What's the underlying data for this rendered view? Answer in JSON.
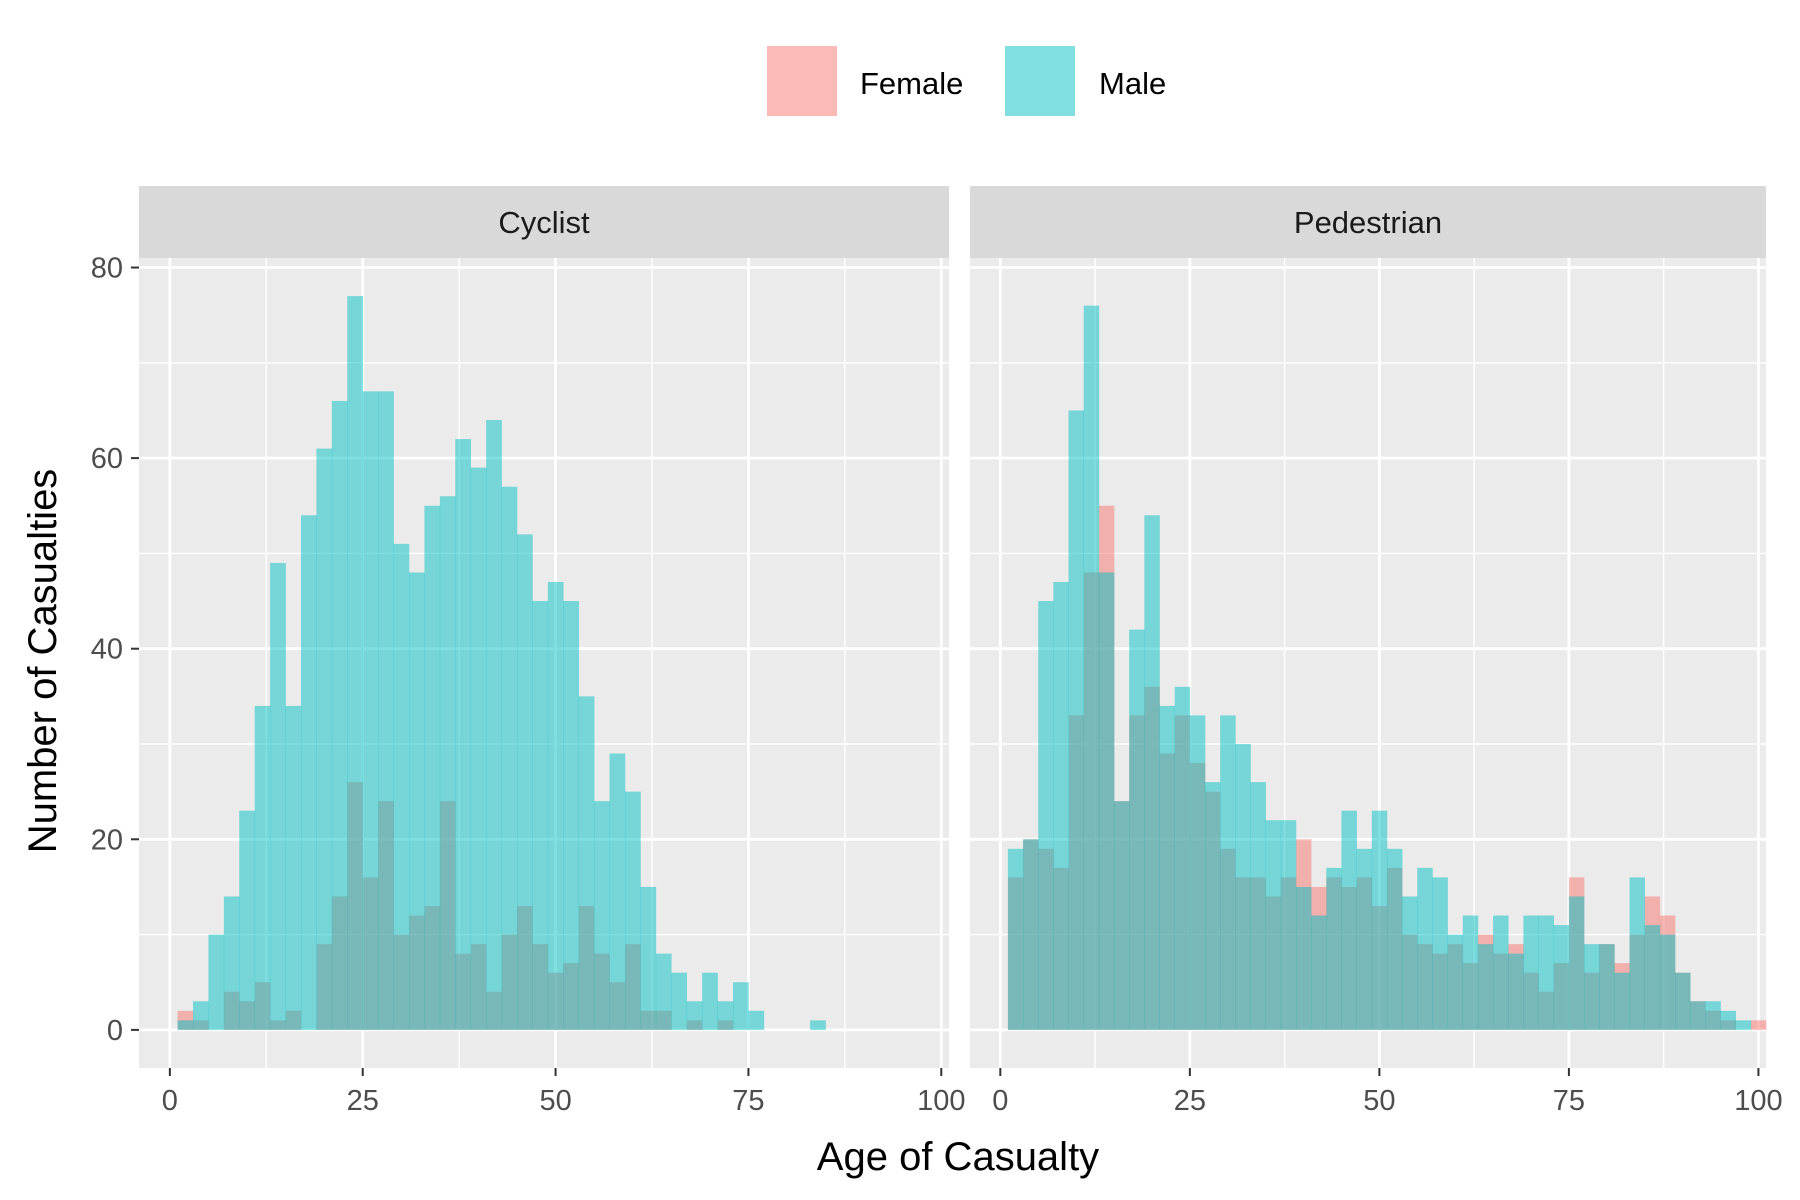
{
  "chart_data": {
    "type": "bar",
    "subtype": "histogram",
    "xlabel": "Age of Casualty",
    "ylabel": "Number of Casualties",
    "xlim": [
      -4,
      101
    ],
    "ylim": [
      -4,
      81
    ],
    "xticks": [
      0,
      25,
      50,
      75,
      100
    ],
    "yticks": [
      0,
      20,
      40,
      60,
      80
    ],
    "grid": true,
    "legend": "top",
    "bin_start": 1,
    "bin_width": 2,
    "colors": {
      "Female": "#F8766D",
      "Male": "#00BFC4",
      "panel": "#EBEBEB",
      "strip": "#D9D9D9",
      "overlap": "#7BB7B1"
    },
    "legend_entries": [
      {
        "label": "Female",
        "color": "#F8766D"
      },
      {
        "label": "Male",
        "color": "#00BFC4"
      }
    ],
    "panels": [
      {
        "strip": "Cyclist",
        "series": [
          {
            "name": "Female",
            "values": [
              2,
              1,
              0,
              4,
              3,
              5,
              1,
              2,
              0,
              9,
              14,
              26,
              16,
              24,
              10,
              12,
              13,
              24,
              8,
              9,
              4,
              10,
              13,
              9,
              6,
              7,
              13,
              8,
              5,
              9,
              2,
              2,
              0,
              1,
              0,
              1,
              0,
              0,
              0,
              0,
              0,
              0,
              0,
              0,
              0,
              0,
              0,
              0,
              0,
              0
            ]
          },
          {
            "name": "Male",
            "values": [
              1,
              3,
              10,
              14,
              23,
              34,
              49,
              34,
              54,
              61,
              66,
              77,
              67,
              67,
              51,
              48,
              55,
              56,
              62,
              59,
              64,
              57,
              52,
              45,
              47,
              45,
              35,
              24,
              29,
              25,
              15,
              8,
              6,
              3,
              6,
              3,
              5,
              2,
              0,
              0,
              0,
              1,
              0,
              0,
              0,
              0,
              0,
              0,
              0,
              0
            ]
          }
        ]
      },
      {
        "strip": "Pedestrian",
        "series": [
          {
            "name": "Female",
            "values": [
              16,
              20,
              19,
              17,
              33,
              48,
              55,
              24,
              33,
              36,
              29,
              33,
              28,
              25,
              19,
              16,
              16,
              14,
              16,
              20,
              15,
              16,
              15,
              16,
              13,
              17,
              10,
              9,
              8,
              9,
              7,
              10,
              8,
              9,
              6,
              4,
              7,
              16,
              6,
              9,
              7,
              10,
              14,
              12,
              6,
              3,
              2,
              1,
              0,
              1
            ]
          },
          {
            "name": "Male",
            "values": [
              19,
              20,
              45,
              47,
              65,
              76,
              48,
              24,
              42,
              54,
              34,
              36,
              33,
              26,
              33,
              30,
              26,
              22,
              22,
              15,
              12,
              17,
              23,
              19,
              23,
              19,
              14,
              17,
              16,
              10,
              12,
              9,
              12,
              8,
              12,
              12,
              11,
              14,
              9,
              9,
              6,
              16,
              11,
              10,
              6,
              3,
              3,
              2,
              1,
              0
            ]
          }
        ]
      }
    ]
  }
}
